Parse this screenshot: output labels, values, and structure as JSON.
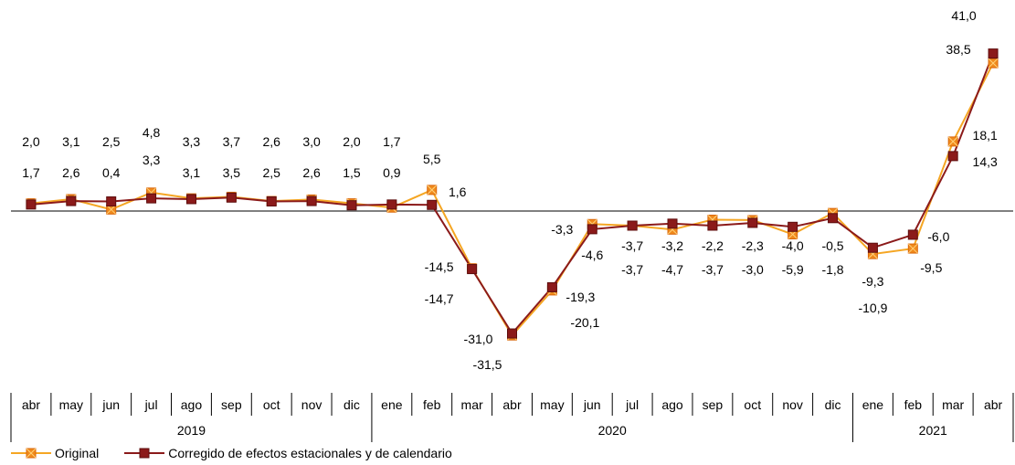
{
  "chart_data": {
    "type": "line",
    "categories": [
      "abr",
      "may",
      "jun",
      "jul",
      "ago",
      "sep",
      "oct",
      "nov",
      "dic",
      "ene",
      "feb",
      "mar",
      "abr",
      "may",
      "jun",
      "jul",
      "ago",
      "sep",
      "oct",
      "nov",
      "dic",
      "ene",
      "feb",
      "mar",
      "abr"
    ],
    "year_groups": [
      {
        "label": "2019",
        "start": 0,
        "end": 8
      },
      {
        "label": "2020",
        "start": 9,
        "end": 20
      },
      {
        "label": "2021",
        "start": 21,
        "end": 24
      }
    ],
    "series": [
      {
        "name": "Original",
        "color": "#F5A623",
        "marker_fill": "#F08A1C",
        "marker_stroke": "#D9660A",
        "values": [
          2.0,
          3.1,
          0.4,
          4.8,
          3.3,
          3.7,
          2.6,
          3.0,
          2.0,
          0.9,
          5.5,
          -14.5,
          -31.5,
          -20.1,
          -3.3,
          -3.7,
          -4.7,
          -2.2,
          -2.3,
          -5.9,
          -0.5,
          -10.9,
          -9.5,
          18.1,
          38.5
        ],
        "labels": [
          "2,0",
          "3,1",
          "0,4",
          "4,8",
          "3,3",
          "3,7",
          "2,6",
          "3,0",
          "2,0",
          "0,9",
          "5,5",
          "-14,5",
          "-31,5",
          "-20,1",
          "-3,3",
          "-3,7",
          "-4,7",
          "-2,2",
          "-2,3",
          "-5,9",
          "-0,5",
          "-10,9",
          "-9,5",
          "18,1",
          "38,5"
        ]
      },
      {
        "name": "Corregido de efectos estacionales y de calendario",
        "color": "#8B1A1A",
        "marker_fill": "#8B1A1A",
        "marker_stroke": "#5E0E0E",
        "values": [
          1.7,
          2.6,
          2.5,
          3.3,
          3.1,
          3.5,
          2.5,
          2.6,
          1.5,
          1.7,
          1.6,
          -14.7,
          -31.0,
          -19.3,
          -4.6,
          -3.7,
          -3.2,
          -3.7,
          -3.0,
          -4.0,
          -1.8,
          -9.3,
          -6.0,
          14.3,
          41.0
        ],
        "labels": [
          "1,7",
          "2,6",
          "2,5",
          "3,3",
          "3,1",
          "3,5",
          "2,5",
          "2,6",
          "1,5",
          "1,7",
          "1,6",
          "-14,7",
          "-31,0",
          "-19,3",
          "-4,6",
          "-3,7",
          "-3,2",
          "-3,7",
          "-3,0",
          "-4,0",
          "-1,8",
          "-9,3",
          "-6,0",
          "14,3",
          "41,0"
        ]
      }
    ],
    "ylim": [
      -34,
      44
    ],
    "grid": false,
    "legend_position": "bottom-left"
  }
}
